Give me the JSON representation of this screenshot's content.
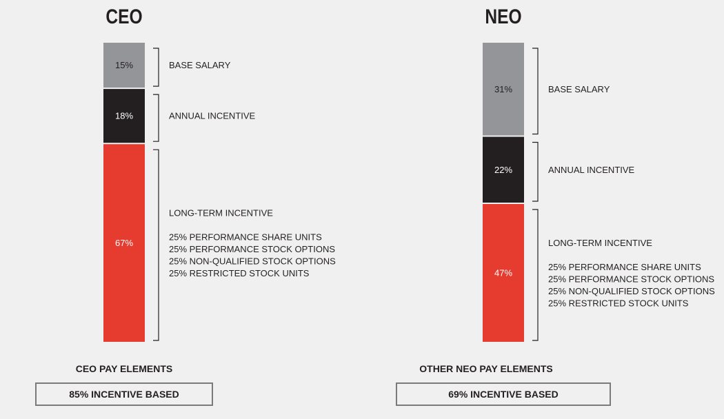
{
  "chart_data": [
    {
      "type": "bar",
      "stacked": true,
      "title": "CEO",
      "footer_title": "CEO PAY ELEMENTS",
      "footer_box": "85% INCENTIVE BASED",
      "series": [
        {
          "name": "BASE SALARY",
          "value": 15,
          "value_label": "15%",
          "color": "#939598",
          "label_color": "#231f20",
          "details": []
        },
        {
          "name": "ANNUAL INCENTIVE",
          "value": 18,
          "value_label": "18%",
          "color": "#231f20",
          "label_color": "#ffffff",
          "details": []
        },
        {
          "name": "LONG-TERM INCENTIVE",
          "value": 67,
          "value_label": "67%",
          "color": "#e63c2f",
          "label_color": "#ffffff",
          "details": [
            "25% PERFORMANCE SHARE UNITS",
            "25% PERFORMANCE STOCK OPTIONS",
            "25% NON-QUALIFIED STOCK OPTIONS",
            "25% RESTRICTED STOCK UNITS"
          ]
        }
      ]
    },
    {
      "type": "bar",
      "stacked": true,
      "title": "NEO",
      "footer_title": "OTHER NEO PAY ELEMENTS",
      "footer_box": "69% INCENTIVE BASED",
      "series": [
        {
          "name": "BASE SALARY",
          "value": 31,
          "value_label": "31%",
          "color": "#939598",
          "label_color": "#231f20",
          "details": []
        },
        {
          "name": "ANNUAL INCENTIVE",
          "value": 22,
          "value_label": "22%",
          "color": "#231f20",
          "label_color": "#ffffff",
          "details": []
        },
        {
          "name": "LONG-TERM INCENTIVE",
          "value": 47,
          "value_label": "47%",
          "color": "#e63c2f",
          "label_color": "#ffffff",
          "details": [
            "25% PERFORMANCE SHARE UNITS",
            "25% PERFORMANCE STOCK OPTIONS",
            "25% NON-QUALIFIED STOCK OPTIONS",
            "25% RESTRICTED STOCK UNITS"
          ]
        }
      ]
    }
  ]
}
